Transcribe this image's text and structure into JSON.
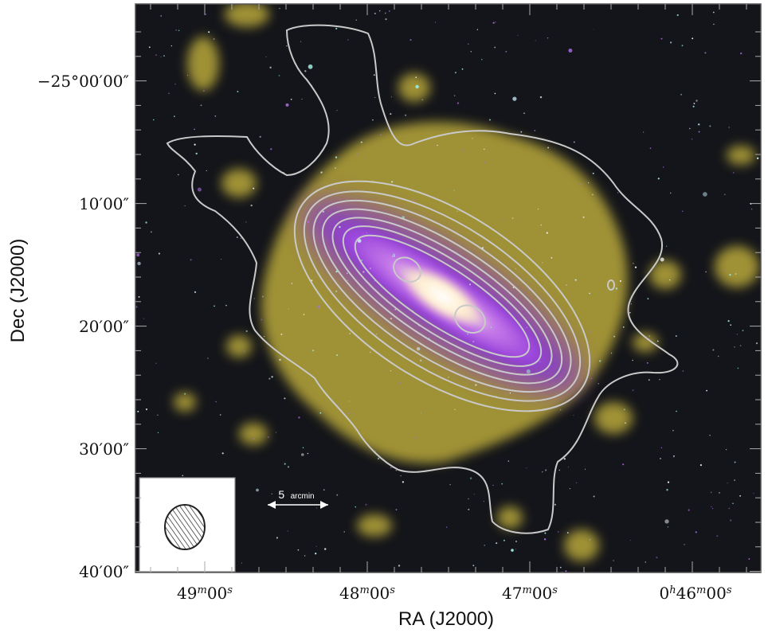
{
  "figure": {
    "x_axis_title": "RA (J2000)",
    "y_axis_title": "Dec (J2000)",
    "x_ticks": [
      {
        "base": "49",
        "sup1": "m",
        "mid": "00",
        "sup2": "s"
      },
      {
        "base": "48",
        "sup1": "m",
        "mid": "00",
        "sup2": "s"
      },
      {
        "base": "47",
        "sup1": "m",
        "mid": "00",
        "sup2": "s"
      },
      {
        "pre": "0",
        "presup": "h",
        "base": "46",
        "sup1": "m",
        "mid": "00",
        "sup2": "s"
      }
    ],
    "y_ticks": [
      "−25°00′00″",
      "10′00″",
      "20′00″",
      "30′00″",
      "40′00″"
    ],
    "scale_bar": {
      "value": "5",
      "unit": "arcmin"
    },
    "colors": {
      "sky_background": "#14151a",
      "hi_emission": "#b8a73a",
      "stellar_disk": "#a24fe0",
      "bulge": "#fff3dc",
      "contours": "#c9c9c9"
    }
  }
}
